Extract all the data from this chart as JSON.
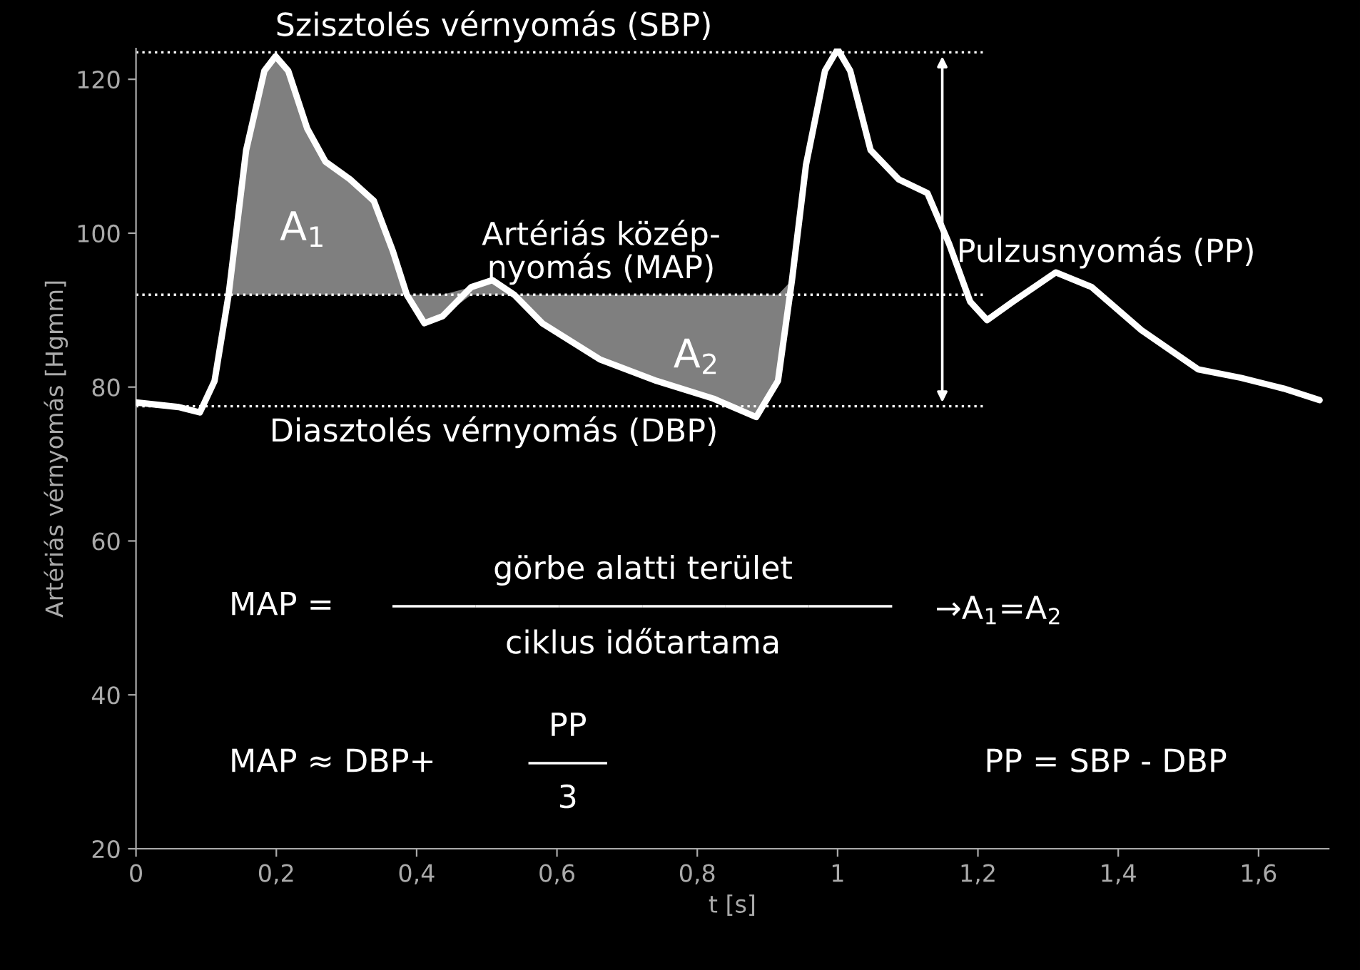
{
  "chart_data": {
    "type": "line",
    "xlabel": "t [s]",
    "ylabel": "Artériás vérnyomás [Hgmm]",
    "x": [
      0,
      0.061,
      0.091,
      0.112,
      0.132,
      0.157,
      0.183,
      0.199,
      0.217,
      0.244,
      0.27,
      0.305,
      0.339,
      0.366,
      0.386,
      0.411,
      0.437,
      0.478,
      0.508,
      0.539,
      0.579,
      0.661,
      0.742,
      0.823,
      0.884,
      0.915,
      0.935,
      0.955,
      0.982,
      1.0,
      1.018,
      1.047,
      1.087,
      1.128,
      1.159,
      1.189,
      1.213,
      1.25,
      1.311,
      1.362,
      1.433,
      1.514,
      1.575,
      1.636,
      1.687
    ],
    "series": [
      {
        "color": "#ffffff",
        "values": [
          78,
          77.4,
          76.7,
          80.8,
          92,
          110.8,
          121.1,
          123,
          121.1,
          113.6,
          109.3,
          107,
          104.2,
          97.7,
          92,
          88.3,
          89.2,
          93,
          93.9,
          92,
          88.3,
          83.6,
          80.8,
          78.5,
          76.1,
          80.8,
          93.9,
          108.9,
          121.1,
          123.9,
          121.1,
          110.8,
          107,
          105.2,
          98.6,
          91.1,
          88.7,
          91.1,
          94.9,
          93,
          87.4,
          82.3,
          81.2,
          79.8,
          78.3
        ],
        "lower": [
          null,
          null,
          null,
          null,
          92,
          92,
          92,
          92,
          92,
          92,
          92,
          92,
          92,
          92,
          92,
          88.3,
          89.2,
          92,
          92,
          92,
          88.3,
          83.6,
          80.8,
          78.5,
          76.1,
          80.8,
          92,
          null,
          null,
          null,
          null,
          null,
          null,
          null,
          null,
          null,
          null,
          null,
          null,
          null,
          null,
          null,
          null,
          null,
          null
        ],
        "upper": [
          null,
          null,
          null,
          null,
          92,
          110.8,
          121.1,
          123,
          121.1,
          113.6,
          109.3,
          107,
          104.2,
          97.7,
          92,
          92,
          92,
          93,
          93.9,
          92,
          92,
          92,
          92,
          92,
          92,
          92,
          93.9,
          null,
          null,
          null,
          null,
          null,
          null,
          null,
          null,
          null,
          null,
          null,
          null,
          null,
          null,
          null,
          null,
          null,
          null
        ]
      }
    ],
    "xlim": [
      0,
      1.7
    ],
    "ylim": [
      20,
      124
    ],
    "xticks": [
      0,
      {
        "value": 0.2,
        "label": "0,2"
      },
      {
        "value": 0.4,
        "label": "0,4"
      },
      {
        "value": 0.6,
        "label": "0,6"
      },
      {
        "value": 0.8,
        "label": "0,8"
      },
      1,
      {
        "value": 1.2,
        "label": "1,2"
      },
      {
        "value": 1.4,
        "label": "1,4"
      },
      {
        "value": 1.6,
        "label": "1,6"
      }
    ],
    "yticks": [
      20,
      40,
      60,
      80,
      100,
      120
    ],
    "grid": false,
    "marker": "none",
    "line_style": "solid",
    "ref_lines": [
      {
        "axis": "y",
        "value": 123.5,
        "label": "Szisztolés vérnyomás (SBP)",
        "color": "#ffffff",
        "line_style": "dotted"
      },
      {
        "axis": "y",
        "value": 92,
        "label": "Artériás közép-\nnyomás (MAP)",
        "color": "#ffffff",
        "line_style": "dotted"
      },
      {
        "axis": "y",
        "value": 77.5,
        "label": "Diasztolés vérnyomás (DBP)",
        "color": "#ffffff",
        "line_style": "dotted"
      }
    ],
    "annotations": [
      "A$_{1}$",
      "A$_{2}$",
      "Pulzusnyomás (PP)",
      "MAP =",
      "görbe alatti terület",
      "ciklus időtartama",
      "→A$_{1}$=A$_{2}$",
      "MAP ≈ DBP+",
      "PP",
      "3",
      "PP = SBP - DBP"
    ]
  }
}
